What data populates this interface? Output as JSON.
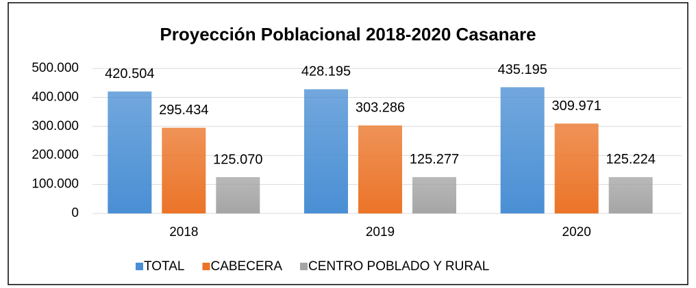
{
  "chart_data": {
    "type": "bar",
    "title": "Proyección Poblacional 2018-2020 Casanare",
    "categories": [
      "2018",
      "2019",
      "2020"
    ],
    "series": [
      {
        "name": "TOTAL",
        "color": "#4a8fd4",
        "values": [
          420504,
          428195,
          435195
        ],
        "value_labels": [
          "420.504",
          "428.195",
          "435.195"
        ]
      },
      {
        "name": "CABECERA",
        "color": "#eb7428",
        "values": [
          295434,
          303286,
          309971
        ],
        "value_labels": [
          "295.434",
          "303.286",
          "309.971"
        ]
      },
      {
        "name": "CENTRO POBLADO Y RURAL",
        "color": "#a5a5a5",
        "values": [
          125070,
          125277,
          125224
        ],
        "value_labels": [
          "125.070",
          "125.277",
          "125.224"
        ]
      }
    ],
    "ylim": [
      0,
      500000
    ],
    "yticks": [
      0,
      {
        "value": 100000,
        "label": "100.000"
      },
      {
        "value": 200000,
        "label": "200.000"
      },
      {
        "value": 300000,
        "label": "300.000"
      },
      {
        "value": 400000,
        "label": "400.000"
      },
      {
        "value": 500000,
        "label": "500.000"
      }
    ],
    "grid": true,
    "legend": "bottom"
  }
}
